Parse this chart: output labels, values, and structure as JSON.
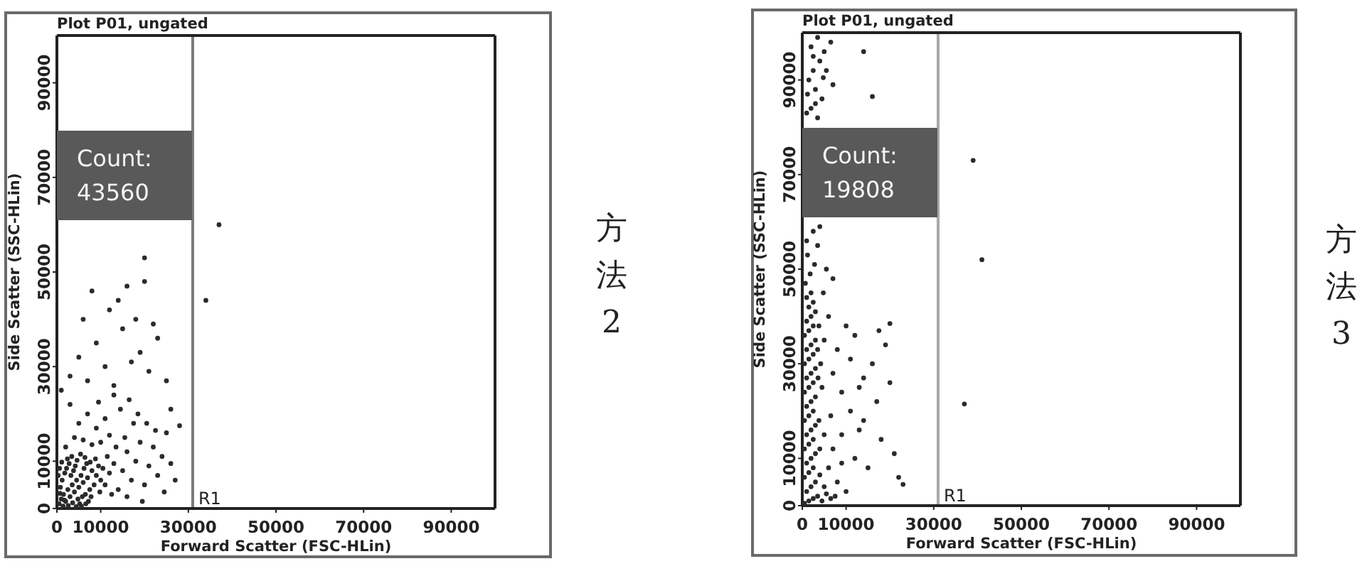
{
  "chart_data": [
    {
      "type": "scatter",
      "title": "Plot P01, ungated",
      "xlabel": "Forward Scatter (FSC-HLin)",
      "ylabel": "Side Scatter (SSC-HLin)",
      "xlim": [
        0,
        100000
      ],
      "ylim": [
        0,
        100000
      ],
      "xticks": [
        0,
        10000,
        30000,
        50000,
        70000,
        90000
      ],
      "yticks": [
        0,
        10000,
        30000,
        50000,
        70000,
        90000
      ],
      "marker": "circle",
      "ref_lines": [
        {
          "axis": "x",
          "value": 31000,
          "label": "R1",
          "color": "#7a7a7a"
        }
      ],
      "annotations": [
        "Count: 43560",
        "方法2"
      ],
      "series": [
        {
          "color": "#2b2b2b",
          "x": [
            500,
            1000,
            1500,
            2000,
            2500,
            3000,
            3500,
            4000,
            4500,
            5000,
            5500,
            6000,
            6500,
            7000,
            7500,
            8000,
            8500,
            9000,
            9500,
            10000,
            800,
            1200,
            1800,
            2200,
            2800,
            3200,
            3800,
            4200,
            4800,
            5200,
            5800,
            6200,
            6800,
            7200,
            7800,
            300,
            600,
            1400,
            2600,
            3600,
            4400,
            5600,
            6600,
            1100,
            2400,
            3400,
            4600,
            5400,
            6400,
            7600,
            8800,
            9800,
            10500,
            11000,
            12000,
            12500,
            13000,
            11500,
            700,
            1700,
            14000,
            15000,
            16000,
            17000,
            18000,
            19000,
            20000,
            21000,
            22000,
            23000,
            24000,
            25000,
            26000,
            27000,
            28000,
            15500,
            17500,
            13500,
            12000,
            10000,
            8000,
            6000,
            4000,
            2000,
            9000,
            11000,
            14500,
            16500,
            18500,
            20500,
            22500,
            13000,
            7000,
            5000,
            3000,
            24500,
            19500,
            16000,
            26000,
            9500,
            3000,
            5000,
            7000,
            9000,
            11000,
            13000,
            15000,
            17000,
            19000,
            21000,
            23000,
            6000,
            12000,
            18000,
            22000,
            8000,
            16000,
            14000,
            20000,
            25000,
            34000,
            37000,
            20000,
            1000
          ],
          "values": [
            1000,
            2000,
            3000,
            1500,
            4000,
            2500,
            5000,
            3500,
            6000,
            4500,
            7000,
            5500,
            3000,
            6500,
            4000,
            8000,
            5000,
            7000,
            9000,
            6000,
            4500,
            6000,
            7500,
            8500,
            9500,
            7000,
            8000,
            9000,
            2000,
            1000,
            2500,
            8500,
            9500,
            1500,
            2500,
            7000,
            8500,
            500,
            600,
            1200,
            400,
            500,
            1000,
            9800,
            10500,
            11000,
            10200,
            11500,
            10800,
            9800,
            10500,
            3500,
            8500,
            5000,
            7500,
            3000,
            9500,
            11000,
            3200,
            1800,
            4000,
            8000,
            12000,
            6000,
            10000,
            14000,
            5000,
            9000,
            13000,
            7000,
            11000,
            16000,
            9500,
            6000,
            17500,
            15000,
            18000,
            13000,
            15500,
            14000,
            13500,
            14500,
            15000,
            13000,
            17000,
            19000,
            21000,
            23000,
            20000,
            18000,
            16500,
            24000,
            20000,
            18000,
            22000,
            3500,
            1500,
            2500,
            21000,
            22500,
            28000,
            32000,
            27000,
            35000,
            30000,
            26000,
            38000,
            31000,
            33000,
            29000,
            36000,
            40000,
            42000,
            40000,
            39000,
            46000,
            47000,
            44000,
            48000,
            27000,
            44000,
            60000,
            53000,
            25000
          ]
        }
      ]
    },
    {
      "type": "scatter",
      "title": "Plot P01, ungated",
      "xlabel": "Forward Scatter (FSC-HLin)",
      "ylabel": "Side Scatter (SSC-HLin)",
      "xlim": [
        0,
        100000
      ],
      "ylim": [
        0,
        100000
      ],
      "xticks": [
        0,
        10000,
        30000,
        50000,
        70000,
        90000
      ],
      "yticks": [
        0,
        10000,
        30000,
        50000,
        70000,
        90000
      ],
      "marker": "circle",
      "ref_lines": [
        {
          "axis": "x",
          "value": 31000,
          "label": "R1",
          "color": "#a8a8a8"
        }
      ],
      "annotations": [
        "Count: 19808",
        "方法3"
      ],
      "series": [
        {
          "color": "#2b2b2b",
          "x": [
            500,
            1500,
            2500,
            3500,
            1000,
            2000,
            3000,
            500,
            1500,
            2500,
            4500,
            5500,
            6500,
            1000,
            2000,
            3000,
            500,
            1500,
            2500,
            1000,
            2000,
            3000,
            500,
            1500,
            2500,
            1000,
            2000,
            3000,
            500,
            1500,
            2500,
            1000,
            2000,
            3000,
            500,
            1500,
            2500,
            1000,
            2000,
            3000,
            500,
            1500,
            2500,
            1000,
            2000,
            3000,
            1500,
            2500,
            1000,
            2000,
            4000,
            5000,
            4000,
            3800,
            3600,
            3500,
            700,
            1800,
            2800,
            1200,
            1000,
            2500,
            4000,
            3500,
            3500,
            2000,
            4500,
            3000,
            1500,
            2500,
            4000,
            5000,
            2000,
            3500,
            6500,
            4800,
            1000,
            3000,
            2500,
            5500,
            1200,
            7000,
            6000,
            7000,
            8000,
            9000,
            10000,
            11000,
            12000,
            13000,
            14000,
            15000,
            16000,
            17000,
            18000,
            19000,
            20000,
            21000,
            22000,
            23000,
            5000,
            6000,
            7000,
            8000,
            9000,
            10000,
            11000,
            12000,
            13000,
            14000,
            6500,
            7500,
            4500,
            5000,
            4800,
            5500,
            9000,
            17500,
            20000,
            7000,
            4200,
            3800,
            37000,
            39000,
            41000,
            14000,
            16000
          ],
          "values": [
            500,
            1000,
            1500,
            2000,
            3000,
            4000,
            5000,
            6000,
            7000,
            8000,
            1000,
            2500,
            1500,
            9000,
            10000,
            11000,
            12000,
            13000,
            14000,
            15000,
            16000,
            17000,
            18000,
            19000,
            20000,
            21000,
            22000,
            23000,
            24000,
            25000,
            26000,
            27000,
            28000,
            29000,
            30000,
            31000,
            32000,
            33000,
            34000,
            35000,
            36000,
            37000,
            38000,
            39000,
            40000,
            41000,
            42000,
            43000,
            44000,
            45000,
            6500,
            4000,
            12000,
            18000,
            27000,
            33000,
            47000,
            49000,
            51000,
            53000,
            56000,
            58000,
            59000,
            55000,
            82000,
            84000,
            86000,
            88000,
            90000,
            92000,
            94000,
            96000,
            97000,
            99000,
            98000,
            90500,
            83000,
            85000,
            95000,
            92000,
            87000,
            89000,
            8000,
            12000,
            5000,
            15000,
            3000,
            20000,
            10000,
            25000,
            18000,
            8000,
            30000,
            22000,
            14000,
            34000,
            26000,
            11000,
            6000,
            4500,
            35000,
            40000,
            28000,
            33000,
            24000,
            38000,
            31000,
            36000,
            16000,
            27000,
            19000,
            2000,
            25000,
            15000,
            45000,
            50000,
            9000,
            37000,
            38500,
            48000,
            30000,
            38000,
            21500,
            73000,
            52000,
            96000,
            86500
          ]
        }
      ]
    }
  ]
}
